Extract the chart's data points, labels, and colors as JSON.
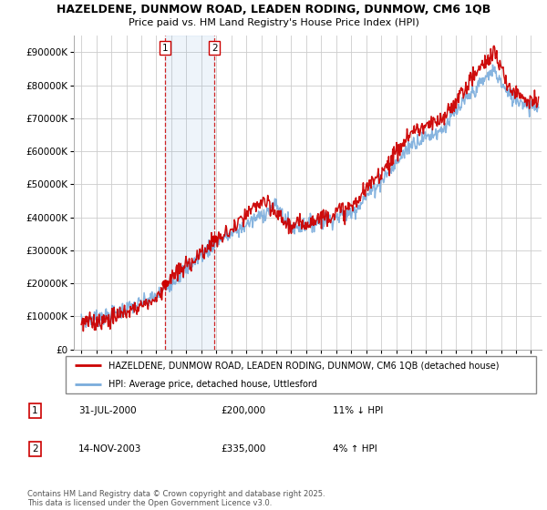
{
  "title": "HAZELDENE, DUNMOW ROAD, LEADEN RODING, DUNMOW, CM6 1QB",
  "subtitle": "Price paid vs. HM Land Registry's House Price Index (HPI)",
  "legend_line1": "HAZELDENE, DUNMOW ROAD, LEADEN RODING, DUNMOW, CM6 1QB (detached house)",
  "legend_line2": "HPI: Average price, detached house, Uttlesford",
  "sale1_date": "31-JUL-2000",
  "sale1_price": "£200,000",
  "sale1_hpi": "11% ↓ HPI",
  "sale2_date": "14-NOV-2003",
  "sale2_price": "£335,000",
  "sale2_hpi": "4% ↑ HPI",
  "footnote": "Contains HM Land Registry data © Crown copyright and database right 2025.\nThis data is licensed under the Open Government Licence v3.0.",
  "sale1_year": 2000.58,
  "sale2_year": 2003.87,
  "sale1_price_val": 200000,
  "sale2_price_val": 335000,
  "red_color": "#cc0000",
  "blue_color": "#7aacdc",
  "vline_color": "#cc0000",
  "background_color": "#ffffff",
  "chart_bg": "#ffffff",
  "ylim_max": 950000,
  "yticks": [
    0,
    100000,
    200000,
    300000,
    400000,
    500000,
    600000,
    700000,
    800000,
    900000
  ],
  "xlabel_years": [
    1995,
    1996,
    1997,
    1998,
    1999,
    2000,
    2001,
    2002,
    2003,
    2004,
    2005,
    2006,
    2007,
    2008,
    2009,
    2010,
    2011,
    2012,
    2013,
    2014,
    2015,
    2016,
    2017,
    2018,
    2019,
    2020,
    2021,
    2022,
    2023,
    2024,
    2025
  ]
}
